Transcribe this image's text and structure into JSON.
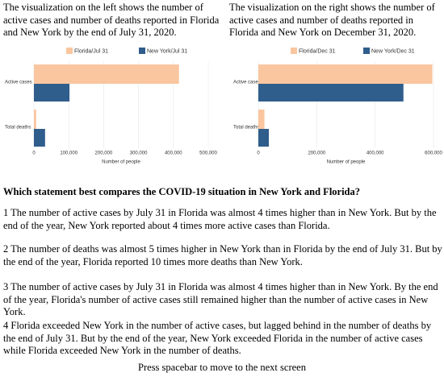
{
  "intro_left": "The visualization on the left shows the number of active cases and number of deaths reported in Florida and New York by the end of July 31, 2020.",
  "intro_right": "The visualization on the right shows the number of active cases and number of deaths reported in Florida and New York on December 31, 2020.",
  "chart_data": [
    {
      "type": "bar",
      "orientation": "horizontal",
      "categories": [
        "Active cases",
        "Total deaths"
      ],
      "x_label": "Number of people",
      "series": [
        {
          "name": "Florida/Jul 31",
          "color": "#f9c6a0",
          "values": [
            416000,
            6500
          ]
        },
        {
          "name": "New York/Jul 31",
          "color": "#2f5d8c",
          "values": [
            102000,
            32000
          ]
        }
      ],
      "xlim": [
        0,
        500000
      ],
      "xticks": [
        0,
        {
          "value": 100000,
          "label": "100,000"
        },
        {
          "value": 200000,
          "label": "200,000"
        },
        {
          "value": 300000,
          "label": "300,000"
        },
        {
          "value": 400000,
          "label": "400,000"
        },
        {
          "value": 500000,
          "label": "500,000"
        }
      ],
      "grid": true
    },
    {
      "type": "bar",
      "orientation": "horizontal",
      "categories": [
        "Active cases",
        "Total deaths"
      ],
      "x_label": "Number of people",
      "series": [
        {
          "name": "Florida/Dec 31",
          "color": "#f9c6a0",
          "values": [
            596000,
            21000
          ]
        },
        {
          "name": "New York/Dec 31",
          "color": "#2f5d8c",
          "values": [
            497000,
            36000
          ]
        }
      ],
      "xlim": [
        0,
        600000
      ],
      "xticks": [
        0,
        {
          "value": 200000,
          "label": "200,000"
        },
        {
          "value": 400000,
          "label": "400,000"
        },
        {
          "value": 600000,
          "label": "600,000"
        }
      ],
      "grid": true
    }
  ],
  "question": "Which statement best compares the COVID-19 situation in New York and Florida?",
  "options": [
    "1 The number of active cases by July 31 in Florida was almost 4 times higher than in New York. But by the end of the year, New York reported about 4 times more active cases than Florida.",
    "2 The number of deaths was almost 5 times higher in New York than in Florida by the end of July 31. But by the end of the year, Florida reported 10 times more deaths than New York.",
    "3 The number of active cases by July 31 in Florida was almost 4 times higher than in New York. By the end of the year, Florida's number of active cases still remained higher than the number of active cases in New York.",
    "4 Florida exceeded New York in the number of active cases, but lagged behind in the number of deaths by the end of July 31. But by the end of the year, New York exceeded Florida in the number of active cases while Florida exceeded New York in the number of deaths."
  ],
  "footer": "Press spacebar to move to the next screen"
}
